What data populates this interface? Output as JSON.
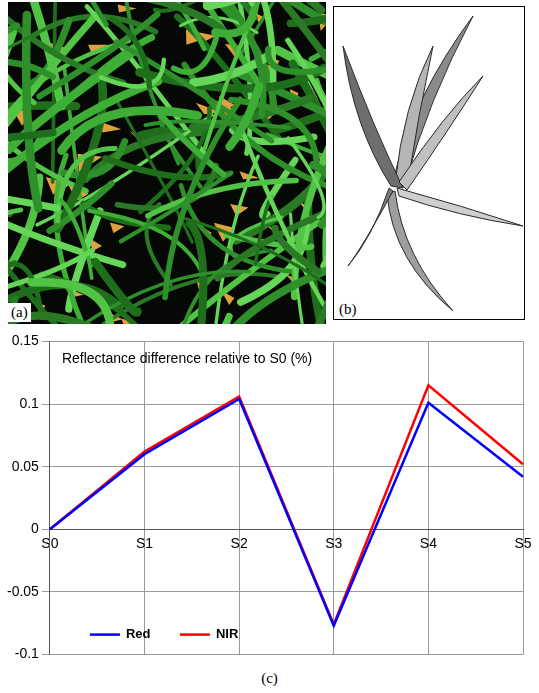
{
  "panel_labels": [
    "(a)",
    "(b)",
    "(c)"
  ],
  "chart_data": {
    "type": "line",
    "title": "Reflectance difference relative to S0 (%)",
    "categories": [
      "S0",
      "S1",
      "S2",
      "S3",
      "S4",
      "S5"
    ],
    "series": [
      {
        "name": "Red",
        "color": "#0000ff",
        "values": [
          0,
          0.06,
          0.104,
          -0.077,
          0.101,
          0.042
        ]
      },
      {
        "name": "NIR",
        "color": "#ff0000",
        "values": [
          0,
          0.062,
          0.106,
          -0.076,
          0.115,
          0.052
        ]
      }
    ],
    "ylim": [
      -0.1,
      0.15
    ],
    "yticks": [
      -0.1,
      -0.05,
      0,
      0.05,
      0.1,
      0.15
    ],
    "grid": true,
    "legend": "lower left"
  }
}
